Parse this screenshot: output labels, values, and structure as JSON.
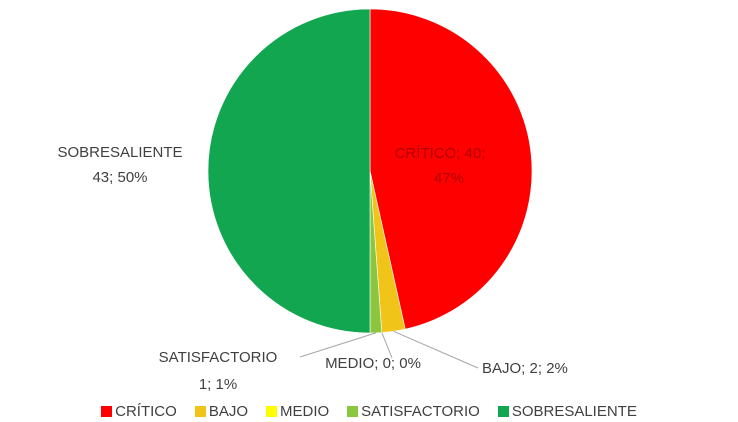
{
  "chart_data": {
    "type": "pie",
    "title": "",
    "categories": [
      "CRÍTICO",
      "BAJO",
      "MEDIO",
      "SATISFACTORIO",
      "SOBRESALIENTE"
    ],
    "values": [
      40,
      2,
      0,
      1,
      43
    ],
    "percent_labels": [
      "47%",
      "2%",
      "0%",
      "1%",
      "50%"
    ],
    "colors": [
      "#ff0000",
      "#f0c419",
      "#ffff00",
      "#8cc63f",
      "#12a650"
    ],
    "data_labels": [
      {
        "line1": "CRÍTICO; 40;",
        "line2": "47%"
      },
      {
        "line1": "BAJO; 2; 2%",
        "line2": ""
      },
      {
        "line1": "MEDIO; 0; 0%",
        "line2": ""
      },
      {
        "line1": "SATISFACTORIO",
        "line2": "1; 1%"
      },
      {
        "line1": "SOBRESALIENTE",
        "line2": "43; 50%"
      }
    ],
    "legend_position": "bottom"
  }
}
